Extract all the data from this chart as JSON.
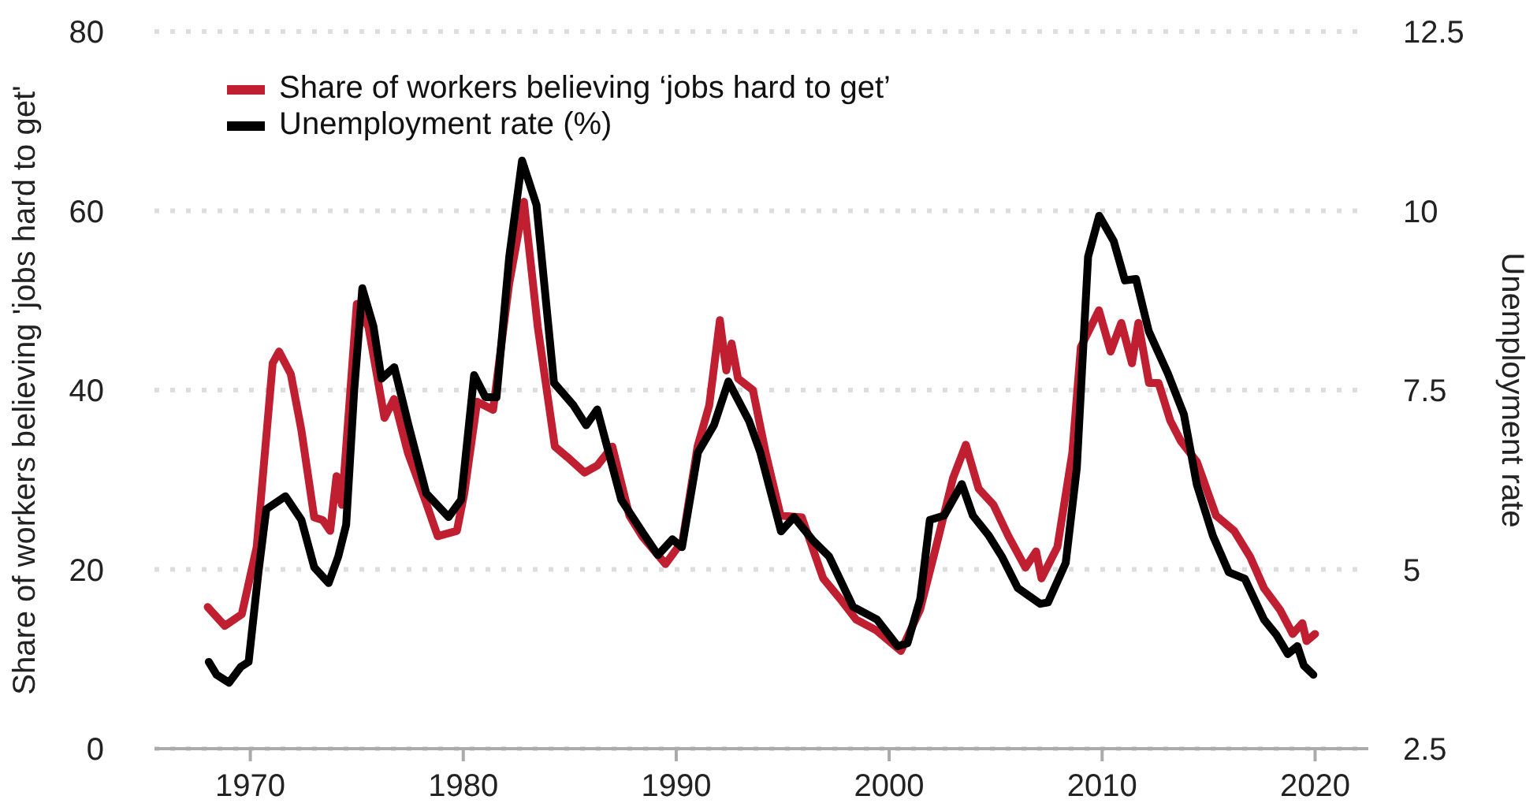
{
  "chart_data": {
    "type": "line",
    "xlabel": null,
    "ylabel": "Share of workers believing 'jobs hard to get'",
    "y2label": "Unemployment rate",
    "xlim": [
      1965.5,
      2022.5
    ],
    "xticks": [
      1970,
      1980,
      1990,
      2000,
      2010,
      2020
    ],
    "ylim": [
      0,
      80
    ],
    "yticks": [
      0,
      20,
      40,
      60,
      80
    ],
    "y2lim": [
      2.5,
      12.5
    ],
    "y2ticks": [
      2.5,
      5,
      7.5,
      10,
      12.5
    ],
    "grid": "y",
    "legend": "top left",
    "marker": "none",
    "line_style": "solid",
    "series": [
      {
        "name": "Share of workers believing ‘jobs hard to get’",
        "color": "#c01f32",
        "x": [
          1968.0,
          1968.8,
          1969.6,
          1970.3,
          1971.05,
          1971.35,
          1971.9,
          1972.4,
          1973.0,
          1973.4,
          1973.75,
          1974.05,
          1974.3,
          1975.0,
          1975.55,
          1976.3,
          1976.75,
          1977.4,
          1978.2,
          1978.8,
          1979.7,
          1980.05,
          1980.65,
          1981.4,
          1982.15,
          1982.85,
          1983.5,
          1984.3,
          1984.9,
          1985.7,
          1986.3,
          1987.0,
          1987.8,
          1988.4,
          1989.5,
          1990.3,
          1991.0,
          1991.55,
          1992.05,
          1992.35,
          1992.6,
          1992.9,
          1993.6,
          1994.2,
          1994.9,
          1995.9,
          1996.9,
          1997.7,
          1998.45,
          1999.4,
          2000.55,
          2001.45,
          2002.2,
          2003.0,
          2003.6,
          2004.2,
          2004.9,
          2005.6,
          2006.4,
          2006.9,
          2007.15,
          2007.9,
          2008.6,
          2009.0,
          2009.85,
          2010.4,
          2010.9,
          2011.4,
          2011.7,
          2012.2,
          2012.65,
          2013.2,
          2013.7,
          2014.45,
          2015.35,
          2016.2,
          2016.95,
          2017.6,
          2018.35,
          2018.95,
          2019.4,
          2019.6,
          2020.0
        ],
        "values": [
          15.8,
          13.7,
          15,
          22.5,
          43,
          44.3,
          41.8,
          35.5,
          25.8,
          25.5,
          24.3,
          30.4,
          27.2,
          49.6,
          47,
          36.9,
          39,
          33,
          27.8,
          23.7,
          24.3,
          28.5,
          38.7,
          37.8,
          51.8,
          61,
          47,
          33.7,
          32.5,
          30.8,
          31.6,
          33.7,
          26,
          23.7,
          20.6,
          23.2,
          33.7,
          38.3,
          47.8,
          42.2,
          45.2,
          41.3,
          40,
          33,
          26,
          25.8,
          19,
          16.7,
          14.4,
          13.2,
          10.9,
          15.5,
          22.5,
          30.2,
          33.9,
          29,
          27.2,
          23.7,
          20.2,
          22,
          19,
          22.5,
          33,
          44.8,
          48.9,
          44.3,
          47.5,
          43,
          47.5,
          40.8,
          40.8,
          36.6,
          34.3,
          32,
          26,
          24.3,
          21.4,
          17.9,
          15.5,
          12.8,
          14,
          12,
          12.8
        ]
      },
      {
        "name": "Unemployment rate (%)",
        "color": "#000000",
        "axis": "y2",
        "x": [
          1968.05,
          1968.42,
          1969.0,
          1969.55,
          1969.92,
          1970.38,
          1970.75,
          1971.65,
          1972.4,
          1973.0,
          1973.68,
          1974.13,
          1974.5,
          1974.88,
          1975.26,
          1975.78,
          1976.16,
          1976.76,
          1977.43,
          1978.26,
          1979.31,
          1979.9,
          1980.51,
          1981.04,
          1981.56,
          1982.16,
          1982.76,
          1983.44,
          1984.26,
          1985.17,
          1985.77,
          1986.29,
          1987.42,
          1988.39,
          1989.14,
          1989.82,
          1990.27,
          1991.02,
          1991.77,
          1992.45,
          1993.42,
          1993.95,
          1994.92,
          1995.53,
          1996.43,
          1997.18,
          1998.3,
          1999.43,
          2000.4,
          2000.86,
          2001.46,
          2001.91,
          2002.58,
          2003.41,
          2003.93,
          2004.68,
          2005.29,
          2006.04,
          2007.09,
          2007.46,
          2008.29,
          2008.81,
          2009.34,
          2009.86,
          2010.54,
          2011.07,
          2011.59,
          2012.19,
          2013.09,
          2013.84,
          2014.44,
          2015.2,
          2015.95,
          2016.7,
          2017.6,
          2018.2,
          2018.72,
          2019.17,
          2019.47,
          2019.92
        ],
        "values": [
          3.71,
          3.53,
          3.42,
          3.64,
          3.71,
          4.96,
          5.84,
          6.02,
          5.69,
          5.03,
          4.81,
          5.18,
          5.62,
          7.51,
          8.92,
          8.39,
          7.66,
          7.82,
          7.01,
          6.06,
          5.73,
          5.97,
          7.71,
          7.4,
          7.4,
          9.36,
          10.7,
          10.08,
          7.6,
          7.29,
          7.01,
          7.23,
          5.97,
          5.53,
          5.2,
          5.42,
          5.31,
          6.63,
          7.01,
          7.62,
          7.07,
          6.63,
          5.53,
          5.73,
          5.4,
          5.18,
          4.48,
          4.3,
          3.93,
          3.97,
          4.59,
          5.69,
          5.75,
          6.19,
          5.75,
          5.47,
          5.18,
          4.74,
          4.52,
          4.54,
          5.09,
          6.41,
          9.36,
          9.93,
          9.58,
          9.03,
          9.05,
          8.32,
          7.73,
          7.16,
          6.19,
          5.47,
          4.96,
          4.87,
          4.3,
          4.08,
          3.82,
          3.93,
          3.66,
          3.53
        ]
      }
    ]
  }
}
